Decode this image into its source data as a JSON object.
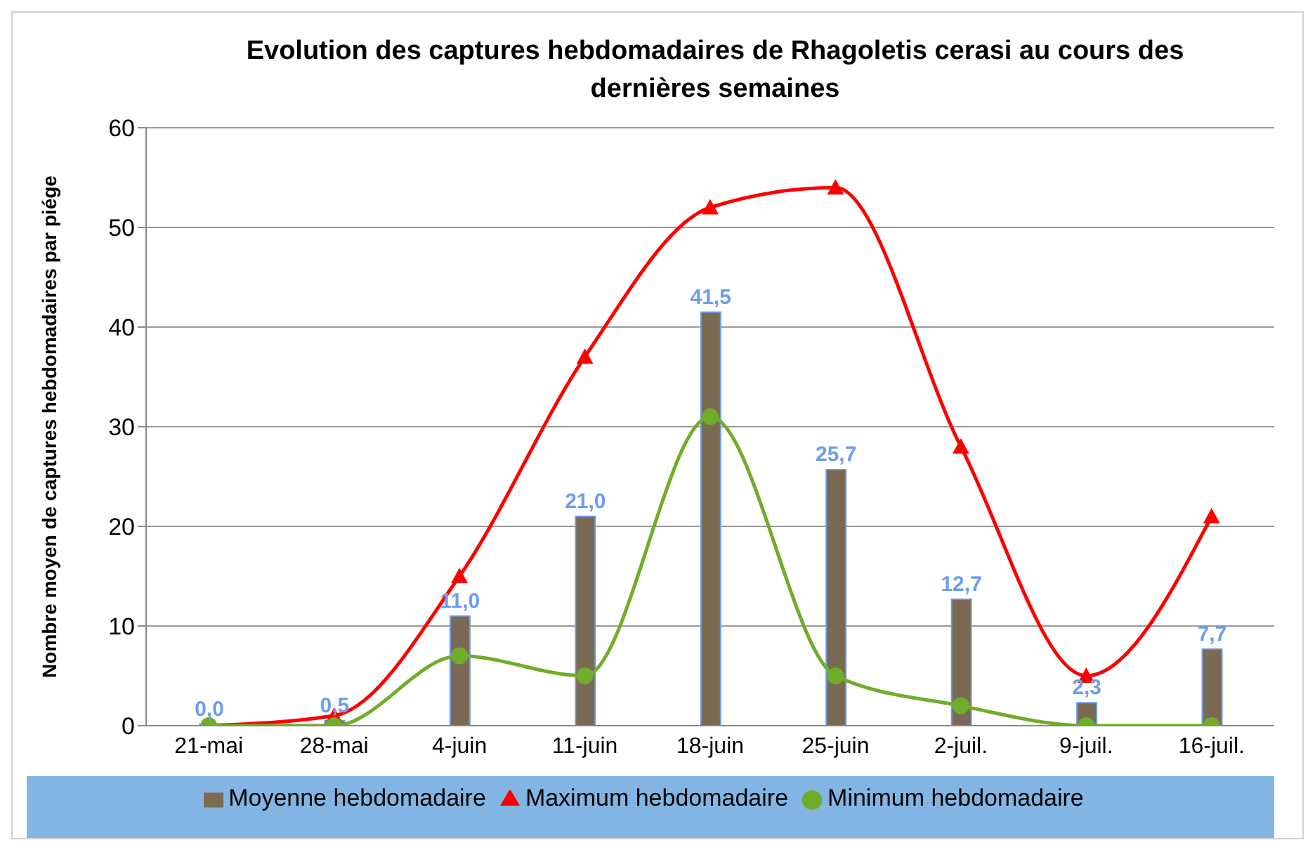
{
  "chart_data": {
    "type": "bar",
    "title": "Evolution des captures hebdomadaires de Rhagoletis cerasi au cours des dernières semaines",
    "ylabel": "Nombre moyen de captures hebdomadaires par piége",
    "categories": [
      "21-mai",
      "28-mai",
      "4-juin",
      "11-juin",
      "18-juin",
      "25-juin",
      "2-juil.",
      "9-juil.",
      "16-juil."
    ],
    "series": [
      {
        "name": "Moyenne hebdomadaire",
        "color": "#7b6a53",
        "values": [
          0,
          0.5,
          11,
          21,
          41.5,
          25.7,
          12.7,
          2.3,
          7.7
        ],
        "value_labels": [
          "0,0",
          "0,5",
          "11,0",
          "21,0",
          "41,5",
          "25,7",
          "12,7",
          "2,3",
          "7,7"
        ]
      },
      {
        "name": "Maximum hebdomadaire",
        "type": "line",
        "color": "#ff0000",
        "marker": "triangle",
        "values": [
          0,
          1,
          15,
          37,
          52,
          54,
          28,
          5,
          21
        ]
      },
      {
        "name": "Minimum hebdomadaire",
        "type": "line",
        "color": "#70ad2a",
        "marker": "circle",
        "values": [
          0,
          0,
          7,
          5,
          31,
          5,
          2,
          0,
          0
        ]
      }
    ],
    "ylim": [
      0,
      60
    ],
    "yticks": [
      0,
      10,
      20,
      30,
      40,
      50,
      60
    ],
    "grid": "y",
    "legend": "bottom"
  }
}
